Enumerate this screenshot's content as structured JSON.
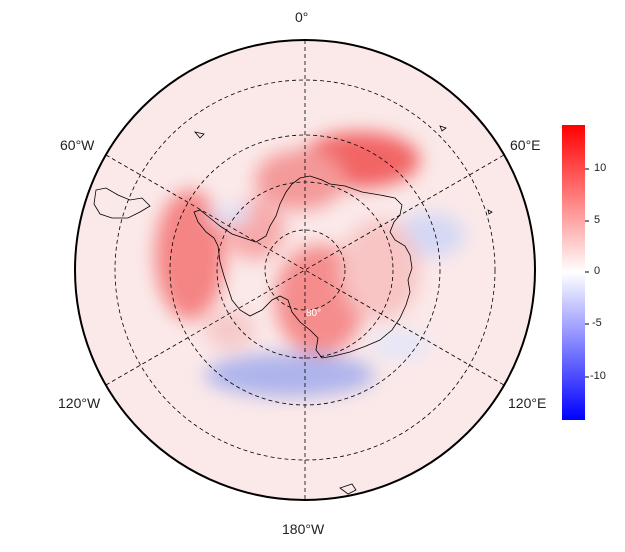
{
  "map": {
    "projection": "south-polar-stereographic",
    "longitude_labels": {
      "top": "0°",
      "upper_left": "60°W",
      "upper_right": "60°E",
      "lower_left": "120°W",
      "lower_right": "120°E",
      "bottom": "180°W"
    },
    "latitude_label": "80°",
    "gridlines": "dashed",
    "coastlines": true
  },
  "colorbar": {
    "colormap": "bwr",
    "min": -14,
    "max": 14,
    "ticks": [
      "10",
      "5",
      "0",
      "-5",
      "-10"
    ],
    "colors": {
      "low": "#0000ff",
      "mid": "#ffffff",
      "high": "#ff0000"
    }
  }
}
